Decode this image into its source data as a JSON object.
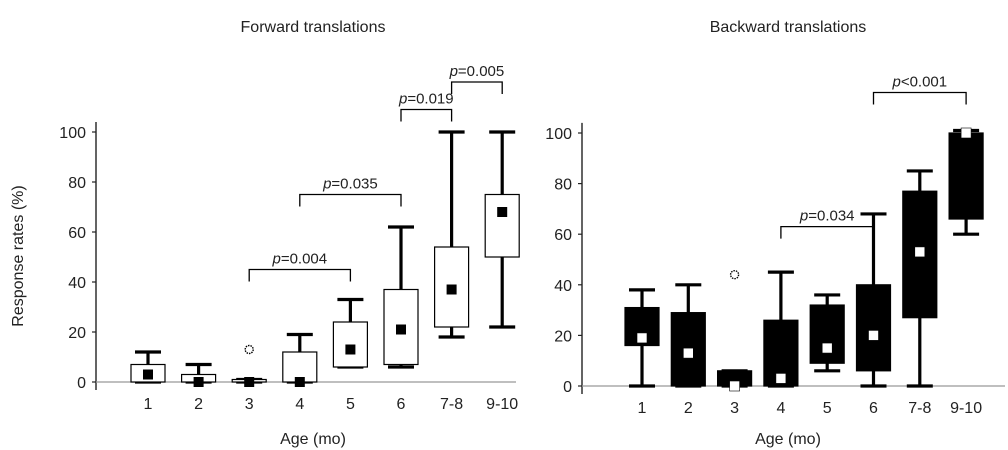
{
  "chart_data": [
    {
      "type": "box",
      "title": "Forward translations",
      "xlabel": "Age (mo)",
      "ylabel": "Response rates (%)",
      "ylim": [
        0,
        100
      ],
      "yticks": [
        0,
        20,
        40,
        60,
        80,
        100
      ],
      "box_fill": "#ffffff",
      "median_marker_color": "#000000",
      "categories": [
        "1",
        "2",
        "3",
        "4",
        "5",
        "6",
        "7-8",
        "9-10"
      ],
      "boxes": [
        {
          "q1": 0,
          "q3": 7,
          "whisker_low": 0,
          "whisker_high": 12,
          "median": 3
        },
        {
          "q1": 0,
          "q3": 3,
          "whisker_low": 0,
          "whisker_high": 7,
          "median": 0
        },
        {
          "q1": 0,
          "q3": 1,
          "whisker_low": 0,
          "whisker_high": 1,
          "median": 0,
          "outlier": 13
        },
        {
          "q1": 0,
          "q3": 12,
          "whisker_low": 0,
          "whisker_high": 19,
          "median": 0
        },
        {
          "q1": 6,
          "q3": 24,
          "whisker_low": 6,
          "whisker_high": 33,
          "median": 13
        },
        {
          "q1": 7,
          "q3": 37,
          "whisker_low": 6,
          "whisker_high": 62,
          "median": 21
        },
        {
          "q1": 22,
          "q3": 54,
          "whisker_low": 18,
          "whisker_high": 100,
          "median": 37
        },
        {
          "q1": 50,
          "q3": 75,
          "whisker_low": 22,
          "whisker_high": 100,
          "median": 68
        }
      ],
      "annotations": [
        {
          "from": "3",
          "to": "5",
          "level": 45,
          "prefix": "p",
          "text": "=0.004"
        },
        {
          "from": "4",
          "to": "6",
          "level": 75,
          "prefix": "p",
          "text": "=0.035"
        },
        {
          "from": "6",
          "to": "7-8",
          "level": 109,
          "prefix": "p",
          "text": "=0.019"
        },
        {
          "from": "7-8",
          "to": "9-10",
          "level": 120,
          "prefix": "p",
          "text": "=0.005"
        }
      ]
    },
    {
      "type": "box",
      "title": "Backward translations",
      "xlabel": "Age (mo)",
      "ylabel": "",
      "ylim": [
        0,
        100
      ],
      "yticks": [
        0,
        20,
        40,
        60,
        80,
        100
      ],
      "box_fill": "#000000",
      "median_marker_color": "#ffffff",
      "categories": [
        "1",
        "2",
        "3",
        "4",
        "5",
        "6",
        "7-8",
        "9-10"
      ],
      "boxes": [
        {
          "q1": 16,
          "q3": 31,
          "whisker_low": 0,
          "whisker_high": 38,
          "median": 19
        },
        {
          "q1": 0,
          "q3": 29,
          "whisker_low": 0,
          "whisker_high": 40,
          "median": 13
        },
        {
          "q1": 0,
          "q3": 6,
          "whisker_low": 0,
          "whisker_high": 6,
          "median": 0,
          "outlier": 44
        },
        {
          "q1": 0,
          "q3": 26,
          "whisker_low": 0,
          "whisker_high": 45,
          "median": 3
        },
        {
          "q1": 9,
          "q3": 32,
          "whisker_low": 6,
          "whisker_high": 36,
          "median": 15
        },
        {
          "q1": 6,
          "q3": 40,
          "whisker_low": 0,
          "whisker_high": 68,
          "median": 20
        },
        {
          "q1": 27,
          "q3": 77,
          "whisker_low": 0,
          "whisker_high": 85,
          "median": 53
        },
        {
          "q1": 66,
          "q3": 100,
          "whisker_low": 60,
          "whisker_high": 101,
          "median": 100
        }
      ],
      "annotations": [
        {
          "from": "4",
          "to": "6",
          "level": 63,
          "prefix": "p",
          "text": "=0.034"
        },
        {
          "from": "6",
          "to": "9-10",
          "level": 116,
          "prefix": "p",
          "text": "<0.001"
        }
      ]
    }
  ]
}
